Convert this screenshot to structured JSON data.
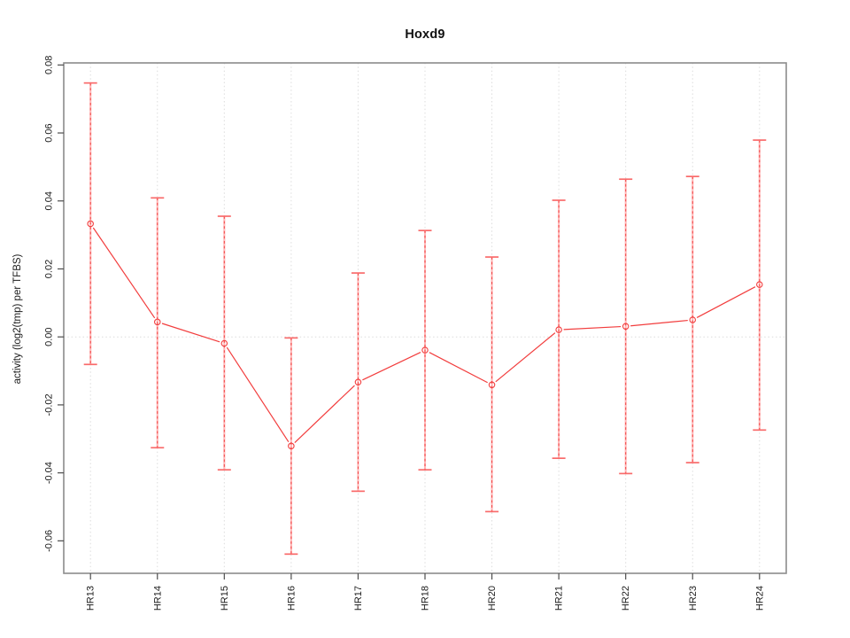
{
  "figure": {
    "title": "Hoxd9"
  },
  "chart_data": {
    "type": "line",
    "title": "Hoxd9",
    "xlabel": "",
    "ylabel": "activity (log2(tmp) per TFBS)",
    "categories": [
      "HR13",
      "HR14",
      "HR15",
      "HR16",
      "HR17",
      "HR18",
      "HR20",
      "HR21",
      "HR22",
      "HR23",
      "HR24"
    ],
    "series": [
      {
        "name": "activity",
        "values": [
          0.0333,
          0.0044,
          -0.0019,
          -0.0321,
          -0.0133,
          -0.0039,
          -0.0141,
          0.0021,
          0.0031,
          0.005,
          0.0154
        ],
        "error_low": [
          -0.0081,
          -0.0326,
          -0.0391,
          -0.0639,
          -0.0454,
          -0.0391,
          -0.0514,
          -0.0357,
          -0.0402,
          -0.037,
          -0.0274
        ],
        "error_high": [
          0.0747,
          0.0409,
          0.0355,
          -0.0003,
          0.0188,
          0.0313,
          0.0235,
          0.0402,
          0.0464,
          0.0472,
          0.0579
        ]
      }
    ],
    "yticks": [
      0.08,
      0.06,
      0.04,
      0.02,
      0.0,
      -0.02,
      -0.04,
      -0.06
    ],
    "ytick_labels": [
      "0.08",
      "0.06",
      "0.04",
      "0.02",
      "0.00",
      "-0.02",
      "-0.04",
      "-0.06"
    ],
    "ylim": [
      -0.0695,
      0.0805
    ],
    "grid": {
      "vertical_dotted_per_category": true,
      "horizontal_zero_line": true
    },
    "legend_position": "none",
    "point_marker": "open-circle",
    "colors": {
      "series_line": "#f23d3d",
      "point_stroke": "#f23d3d",
      "errorbar_body": "#ffb8b8",
      "errorbar_dash": "#f24444",
      "errorbar_cap": "#f96b6b",
      "gridline": "#dcdcdc",
      "axis_box": "#8c8c8c",
      "tick_mark": "#4d4d4d",
      "tick_text": "#1a1a1a"
    }
  }
}
